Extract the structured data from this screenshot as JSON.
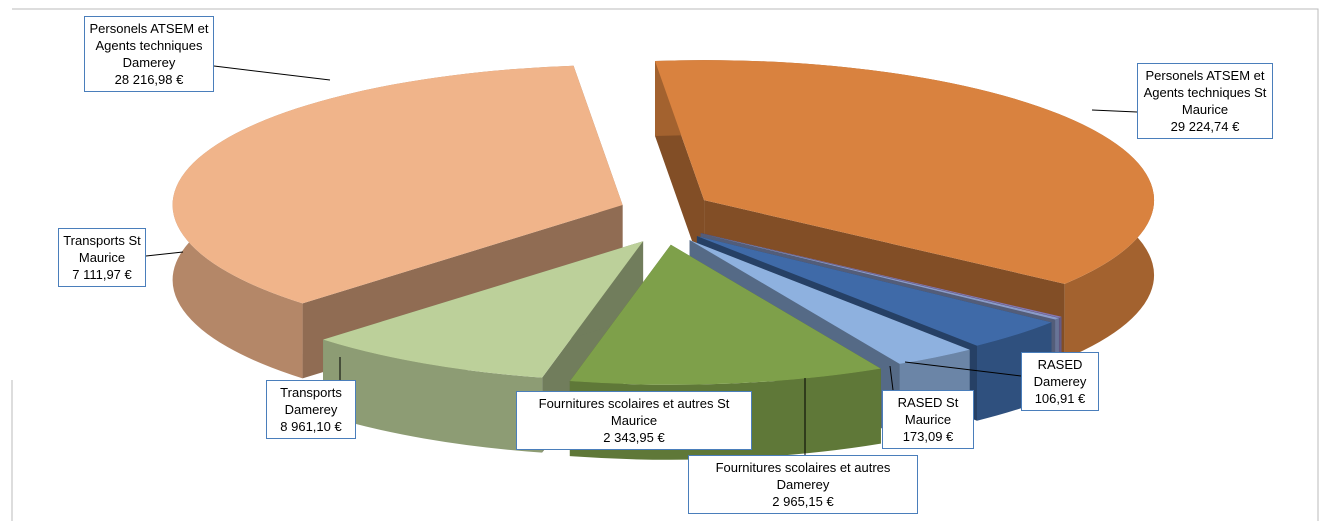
{
  "chart_data": {
    "type": "pie3d",
    "categories": [
      "Personels ATSEM et Agents techniques St Maurice",
      "RASED Damerey",
      "RASED St Maurice",
      "Fournitures scolaires et autres Damerey",
      "Fournitures scolaires et autres St Maurice",
      "Transports Damerey",
      "Transports St Maurice",
      "Personels ATSEM et Agents techniques Damerey"
    ],
    "values": [
      29224.74,
      106.91,
      173.09,
      2965.15,
      2343.95,
      8961.1,
      7111.97,
      28216.98
    ],
    "value_labels": [
      "29 224,74 €",
      "106,91 €",
      "173,09 €",
      "2 965,15 €",
      "2 343,95 €",
      "8 961,10 €",
      "7 111,97 €",
      "28 216,98 €"
    ],
    "colors": [
      "#d9823f",
      "#8878b0",
      "#8a9bc9",
      "#3f6aa8",
      "#8eb1df",
      "#7ea04a",
      "#bcd09a",
      "#f0b48a"
    ]
  }
}
